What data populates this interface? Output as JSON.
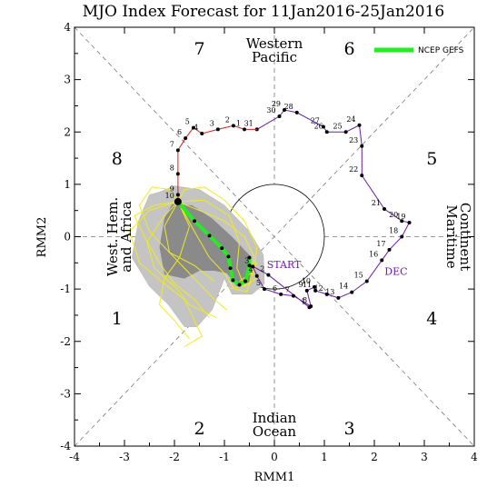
{
  "chart_data": {
    "type": "scatter",
    "title": "MJO Index Forecast for 11Jan2016-25Jan2016",
    "xlabel": "RMM1",
    "ylabel": "RMM2",
    "xlim": [
      -4,
      4
    ],
    "ylim": [
      -4,
      4
    ],
    "xticks": [
      "-4",
      "-3",
      "-2",
      "-1",
      "0",
      "1",
      "2",
      "3",
      "4"
    ],
    "yticks": [
      "-4",
      "-3",
      "-2",
      "-1",
      "0",
      "1",
      "2",
      "3",
      "4"
    ],
    "phase_labels": [
      {
        "label": "1",
        "x": -3.15,
        "y": -1.55
      },
      {
        "label": "2",
        "x": -1.5,
        "y": -3.65
      },
      {
        "label": "3",
        "x": 1.5,
        "y": -3.65
      },
      {
        "label": "4",
        "x": 3.15,
        "y": -1.55
      },
      {
        "label": "5",
        "x": 3.15,
        "y": 1.5
      },
      {
        "label": "6",
        "x": 1.5,
        "y": 3.6
      },
      {
        "label": "7",
        "x": -1.5,
        "y": 3.6
      },
      {
        "label": "8",
        "x": -3.15,
        "y": 1.5
      }
    ],
    "region_labels": {
      "top": [
        "Western",
        "Pacific"
      ],
      "bottom": [
        "Indian",
        "Ocean"
      ],
      "left": [
        "West. Hem.",
        "and Africa"
      ],
      "right": [
        "Maritime",
        "Continent"
      ]
    },
    "legend": {
      "label": "NCEP GEFS",
      "color": "#22ee22",
      "placement": "top-right"
    },
    "grid": false,
    "unit_circle": true,
    "months": [
      {
        "name": "DEC",
        "color": "#6a1aa8",
        "points": [
          {
            "day": "1",
            "x": 0.7,
            "y": -1.35
          },
          {
            "day": "2",
            "x": -0.12,
            "y": -0.73
          },
          {
            "day": "3",
            "x": -0.43,
            "y": -0.57
          },
          {
            "day": "4",
            "x": -0.35,
            "y": -0.75
          },
          {
            "day": "5",
            "x": -0.2,
            "y": -1.0
          },
          {
            "day": "6",
            "x": 0.13,
            "y": -1.1
          },
          {
            "day": "7",
            "x": 0.38,
            "y": -1.13
          },
          {
            "day": "8",
            "x": 0.73,
            "y": -1.33
          },
          {
            "day": "9",
            "x": 0.65,
            "y": -1.03
          },
          {
            "day": "10",
            "x": 0.8,
            "y": -0.96
          },
          {
            "day": "11",
            "x": 0.82,
            "y": -1.03
          },
          {
            "day": "12",
            "x": 1.05,
            "y": -1.1
          },
          {
            "day": "13",
            "x": 1.28,
            "y": -1.17
          },
          {
            "day": "14",
            "x": 1.55,
            "y": -1.06
          },
          {
            "day": "15",
            "x": 1.85,
            "y": -0.85
          },
          {
            "day": "16",
            "x": 2.15,
            "y": -0.45
          },
          {
            "day": "17",
            "x": 2.3,
            "y": -0.25
          },
          {
            "day": "18",
            "x": 2.55,
            "y": 0.0
          },
          {
            "day": "19",
            "x": 2.7,
            "y": 0.27
          },
          {
            "day": "20",
            "x": 2.55,
            "y": 0.3
          },
          {
            "day": "21",
            "x": 2.2,
            "y": 0.53
          },
          {
            "day": "22",
            "x": 1.75,
            "y": 1.17
          },
          {
            "day": "23",
            "x": 1.75,
            "y": 1.73
          },
          {
            "day": "24",
            "x": 1.7,
            "y": 2.13
          },
          {
            "day": "25",
            "x": 1.43,
            "y": 2.0
          },
          {
            "day": "26",
            "x": 1.05,
            "y": 2.0
          },
          {
            "day": "27",
            "x": 0.98,
            "y": 2.1
          },
          {
            "day": "28",
            "x": 0.45,
            "y": 2.37
          },
          {
            "day": "29",
            "x": 0.2,
            "y": 2.42
          },
          {
            "day": "30",
            "x": 0.1,
            "y": 2.3
          },
          {
            "day": "31",
            "x": -0.35,
            "y": 2.05
          }
        ]
      },
      {
        "name": "JAN",
        "color": "#d42020",
        "points": [
          {
            "day": "1",
            "x": -0.6,
            "y": 2.05
          },
          {
            "day": "2",
            "x": -0.82,
            "y": 2.12
          },
          {
            "day": "3",
            "x": -1.13,
            "y": 2.05
          },
          {
            "day": "4",
            "x": -1.45,
            "y": 1.97
          },
          {
            "day": "5",
            "x": -1.62,
            "y": 2.08
          },
          {
            "day": "6",
            "x": -1.78,
            "y": 1.88
          },
          {
            "day": "7",
            "x": -1.93,
            "y": 1.65
          },
          {
            "day": "8",
            "x": -1.93,
            "y": 1.2
          },
          {
            "day": "9",
            "x": -1.93,
            "y": 0.8
          },
          {
            "day": "10",
            "x": -1.93,
            "y": 0.67
          }
        ]
      }
    ],
    "forecast_ensemble_mean": {
      "name": "NCEP GEFS",
      "x": [
        -1.93,
        -1.6,
        -1.3,
        -1.05,
        -0.92,
        -0.88,
        -0.83,
        -0.7,
        -0.58,
        -0.5,
        -0.5
      ],
      "y": [
        0.67,
        0.3,
        0.02,
        -0.22,
        -0.38,
        -0.6,
        -0.83,
        -0.92,
        -0.85,
        -0.55,
        -0.4
      ]
    }
  }
}
